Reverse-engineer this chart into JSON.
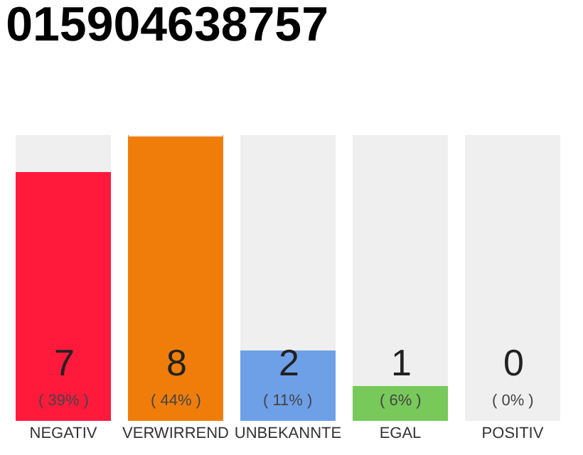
{
  "chart_data": {
    "type": "bar",
    "title": "015904638757",
    "categories": [
      "NEGATIV",
      "VERWIRREND",
      "UNBEKANNTE",
      "EGAL",
      "POSITIV"
    ],
    "stacked": true,
    "series": [
      {
        "colors": [
          "#ff1a3c",
          "#f07d0a",
          "#6ea0e8",
          "#77c95a",
          "#22aa44"
        ],
        "values": [
          7,
          8,
          2,
          1,
          0
        ],
        "value_labels": [
          "7",
          "8",
          "2",
          "1",
          "0"
        ]
      },
      {
        "color": "#efefef",
        "values": [
          1,
          0,
          6,
          7,
          8
        ]
      }
    ],
    "annotations": [
      {
        "text": "( 39% )",
        "x": "NEGATIV",
        "y": 0
      },
      {
        "text": "( 44% )",
        "x": "VERWIRREND",
        "y": 0
      },
      {
        "text": "( 11% )",
        "x": "UNBEKANNTE",
        "y": 0
      },
      {
        "text": "( 6% )",
        "x": "EGAL",
        "y": 0
      },
      {
        "text": "( 0% )",
        "x": "POSITIV",
        "y": 0
      }
    ]
  }
}
